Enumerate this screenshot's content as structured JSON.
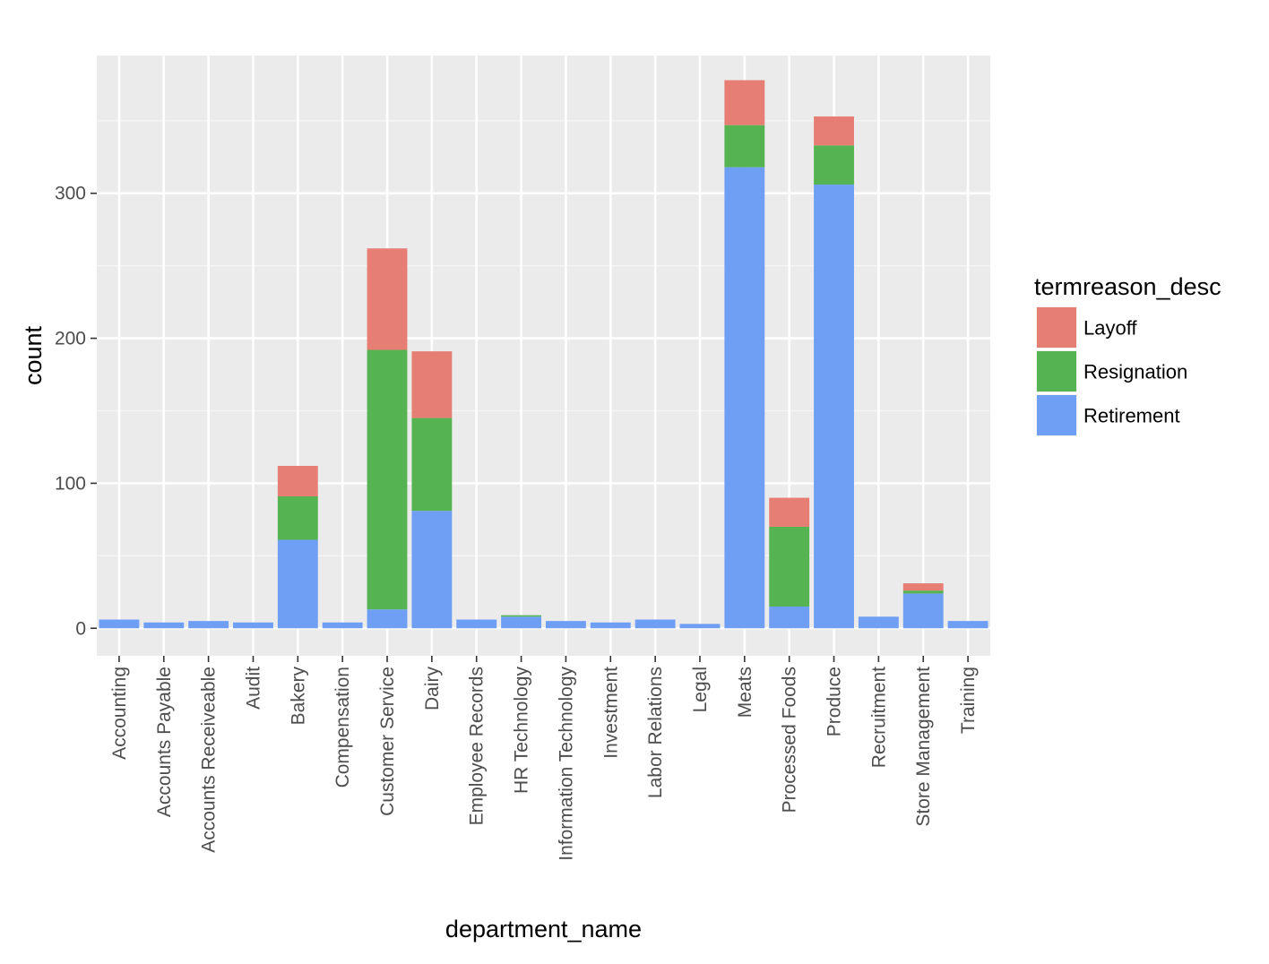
{
  "chart_data": {
    "type": "bar",
    "stacked": true,
    "xlabel": "department_name",
    "ylabel": "count",
    "ylim": [
      -19,
      395
    ],
    "yticks": [
      0,
      100,
      200,
      300
    ],
    "grid": true,
    "legend_position": "right",
    "legend_title": "termreason_desc",
    "categories": [
      "Accounting",
      "Accounts Payable",
      "Accounts Receiveable",
      "Audit",
      "Bakery",
      "Compensation",
      "Customer Service",
      "Dairy",
      "Employee Records",
      "HR Technology",
      "Information Technology",
      "Investment",
      "Labor Relations",
      "Legal",
      "Meats",
      "Processed Foods",
      "Produce",
      "Recruitment",
      "Store Management",
      "Training"
    ],
    "series": [
      {
        "name": "Retirement",
        "color": "#6f9ef5",
        "values": [
          6,
          4,
          5,
          4,
          61,
          4,
          13,
          81,
          6,
          8,
          5,
          4,
          6,
          3,
          318,
          15,
          306,
          8,
          24,
          5
        ]
      },
      {
        "name": "Resignation",
        "color": "#55b451",
        "values": [
          0,
          0,
          0,
          0,
          30,
          0,
          179,
          64,
          0,
          1,
          0,
          0,
          0,
          0,
          29,
          55,
          27,
          0,
          2,
          0
        ]
      },
      {
        "name": "Layoff",
        "color": "#e67e74",
        "values": [
          0,
          0,
          0,
          0,
          21,
          0,
          70,
          46,
          0,
          0,
          0,
          0,
          0,
          0,
          31,
          20,
          20,
          0,
          5,
          0
        ]
      }
    ],
    "legend_order": [
      "Layoff",
      "Resignation",
      "Retirement"
    ]
  }
}
